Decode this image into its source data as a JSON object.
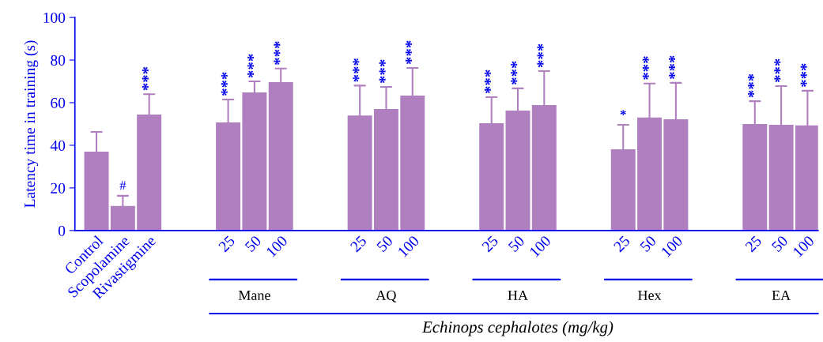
{
  "chart_data": {
    "type": "bar",
    "ylabel": "Latency time in training (s)",
    "xlabel": "Echinops cephalotes (mg/kg)",
    "categories": [
      "Control",
      "Scopolamine",
      "Rivastigmine",
      null,
      null,
      "25",
      "50",
      "100",
      null,
      null,
      "25",
      "50",
      "100",
      null,
      null,
      "25",
      "50",
      "100",
      null,
      null,
      "25",
      "50",
      "100",
      null,
      null,
      "25",
      "50",
      "100"
    ],
    "values": [
      37,
      11.5,
      54.4,
      null,
      null,
      50.7,
      64.8,
      69.6,
      null,
      null,
      54,
      57,
      63.3,
      null,
      null,
      50.4,
      56.3,
      58.9,
      null,
      null,
      38.1,
      53,
      52.2,
      null,
      null,
      50,
      49.6,
      49.3
    ],
    "errors": [
      [
        37,
        46.3
      ],
      [
        11.5,
        16.3
      ],
      [
        54.4,
        64
      ],
      null,
      null,
      [
        50.7,
        61.5
      ],
      [
        64.8,
        70
      ],
      [
        69.6,
        76
      ],
      null,
      null,
      [
        54,
        68
      ],
      [
        57,
        67.4
      ],
      [
        63.3,
        76.3
      ],
      null,
      null,
      [
        50.4,
        62.6
      ],
      [
        56.3,
        66.7
      ],
      [
        58.9,
        74.8
      ],
      null,
      null,
      [
        38.1,
        49.6
      ],
      [
        53,
        69
      ],
      [
        52.2,
        69.3
      ],
      null,
      null,
      [
        50,
        60.7
      ],
      [
        49.6,
        67.8
      ],
      [
        49.3,
        65.6
      ]
    ],
    "color": "#b07fc0",
    "ylim": [
      0,
      100
    ],
    "yticks": [
      0,
      20,
      40,
      60,
      80,
      100
    ],
    "grid": false,
    "legend": false,
    "annotations": [
      "#",
      "***",
      "***",
      "***",
      "***",
      "***",
      "***",
      "***",
      "***",
      "***",
      "***",
      "*",
      "***",
      "***",
      "***",
      "***",
      "***",
      "Mane",
      "AQ",
      "HA",
      "Hex",
      "EA"
    ]
  }
}
